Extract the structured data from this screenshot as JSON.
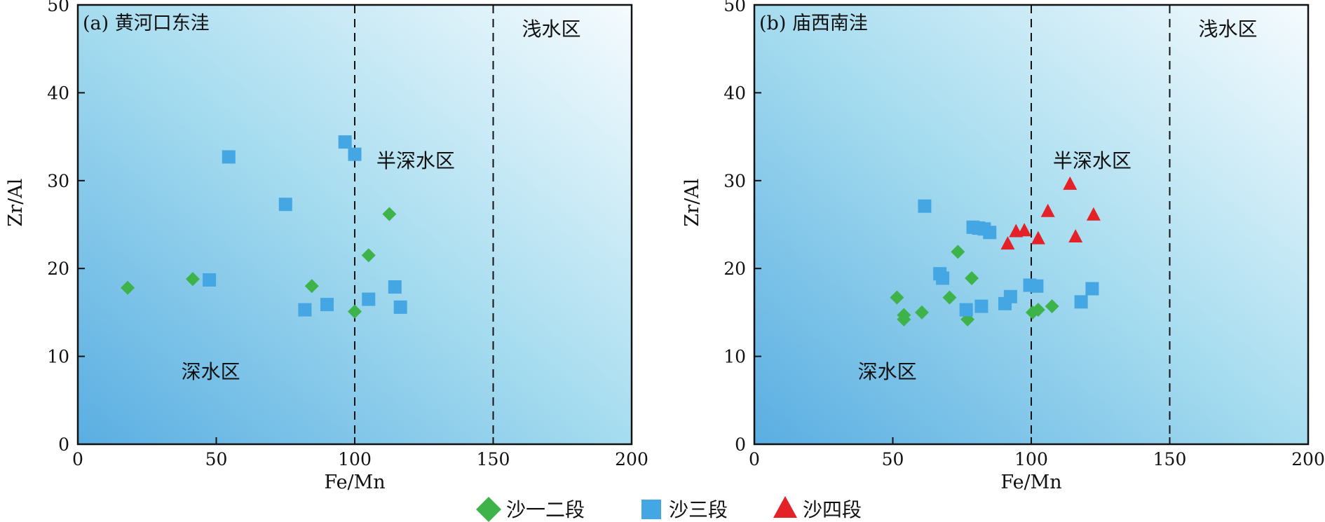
{
  "colors": {
    "gradient_deep": "#5aaee2",
    "gradient_mid": "#a6dcef",
    "gradient_light": "#f6fbfe",
    "series": {
      "沙一二段": "#3db34a",
      "沙三段": "#44a6e2",
      "沙四段": "#e32126"
    }
  },
  "legend": {
    "items": [
      {
        "label": "沙一二段",
        "marker": "diamond",
        "color": "#3db34a"
      },
      {
        "label": "沙三段",
        "marker": "square",
        "color": "#44a6e2"
      },
      {
        "label": "沙四段",
        "marker": "triangle",
        "color": "#e32126"
      }
    ]
  },
  "chart_data": [
    {
      "type": "scatter",
      "title": "(a) 黄河口东洼",
      "xlabel": "Fe/Mn",
      "ylabel": "Zr/Al",
      "xlim": [
        0,
        200
      ],
      "ylim": [
        0,
        50
      ],
      "xticks": [
        0,
        50,
        100,
        150,
        200
      ],
      "yticks": [
        0,
        10,
        20,
        30,
        40,
        50
      ],
      "grid": false,
      "reference_lines_x": [
        100,
        150
      ],
      "zones": [
        {
          "label": "深水区",
          "x": 48,
          "y": 7.5
        },
        {
          "label": "半深水区",
          "x": 122,
          "y": 31.5
        },
        {
          "label": "浅水区",
          "x": 171,
          "y": 46.5
        }
      ],
      "series": [
        {
          "name": "沙一二段",
          "marker": "diamond",
          "points": [
            [
              18,
              17.8
            ],
            [
              41.5,
              18.8
            ],
            [
              84.5,
              18.0
            ],
            [
              100,
              15.1
            ],
            [
              105,
              21.5
            ],
            [
              112.5,
              26.2
            ]
          ]
        },
        {
          "name": "沙三段",
          "marker": "square",
          "points": [
            [
              47.5,
              18.7
            ],
            [
              54.5,
              32.7
            ],
            [
              75,
              27.3
            ],
            [
              82,
              15.3
            ],
            [
              90,
              15.9
            ],
            [
              96.5,
              34.4
            ],
            [
              100,
              33.0
            ],
            [
              105,
              16.5
            ],
            [
              114.5,
              17.9
            ],
            [
              116.5,
              15.6
            ]
          ]
        }
      ]
    },
    {
      "type": "scatter",
      "title": "(b) 庙西南洼",
      "xlabel": "Fe/Mn",
      "ylabel": "Zr/Al",
      "xlim": [
        0,
        200
      ],
      "ylim": [
        0,
        50
      ],
      "xticks": [
        0,
        50,
        100,
        150,
        200
      ],
      "yticks": [
        0,
        10,
        20,
        30,
        40,
        50
      ],
      "grid": false,
      "reference_lines_x": [
        100,
        150
      ],
      "zones": [
        {
          "label": "深水区",
          "x": 48,
          "y": 7.5
        },
        {
          "label": "半深水区",
          "x": 122,
          "y": 31.5
        },
        {
          "label": "浅水区",
          "x": 171,
          "y": 46.5
        }
      ],
      "series": [
        {
          "name": "沙一二段",
          "marker": "diamond",
          "points": [
            [
              51.5,
              16.7
            ],
            [
              54,
              14.7
            ],
            [
              54,
              14.2
            ],
            [
              60.5,
              15.0
            ],
            [
              70.5,
              16.7
            ],
            [
              73.5,
              21.9
            ],
            [
              77,
              14.2
            ],
            [
              78.5,
              18.9
            ],
            [
              100.5,
              15.0
            ],
            [
              102.5,
              15.3
            ],
            [
              107.5,
              15.7
            ]
          ]
        },
        {
          "name": "沙三段",
          "marker": "square",
          "points": [
            [
              61.5,
              27.1
            ],
            [
              67,
              19.4
            ],
            [
              68,
              18.9
            ],
            [
              76.5,
              15.3
            ],
            [
              79,
              24.7
            ],
            [
              81,
              24.6
            ],
            [
              82,
              15.7
            ],
            [
              83,
              24.5
            ],
            [
              85,
              24.1
            ],
            [
              90.5,
              16.0
            ],
            [
              92.5,
              16.8
            ],
            [
              99.5,
              18.1
            ],
            [
              102,
              18.0
            ],
            [
              118,
              16.2
            ],
            [
              122,
              17.7
            ]
          ]
        },
        {
          "name": "沙四段",
          "marker": "triangle",
          "points": [
            [
              91.5,
              22.8
            ],
            [
              94.5,
              24.2
            ],
            [
              97.5,
              24.3
            ],
            [
              102.5,
              23.4
            ],
            [
              106,
              26.5
            ],
            [
              114,
              29.6
            ],
            [
              116,
              23.6
            ],
            [
              122.5,
              26.1
            ]
          ]
        }
      ]
    }
  ]
}
